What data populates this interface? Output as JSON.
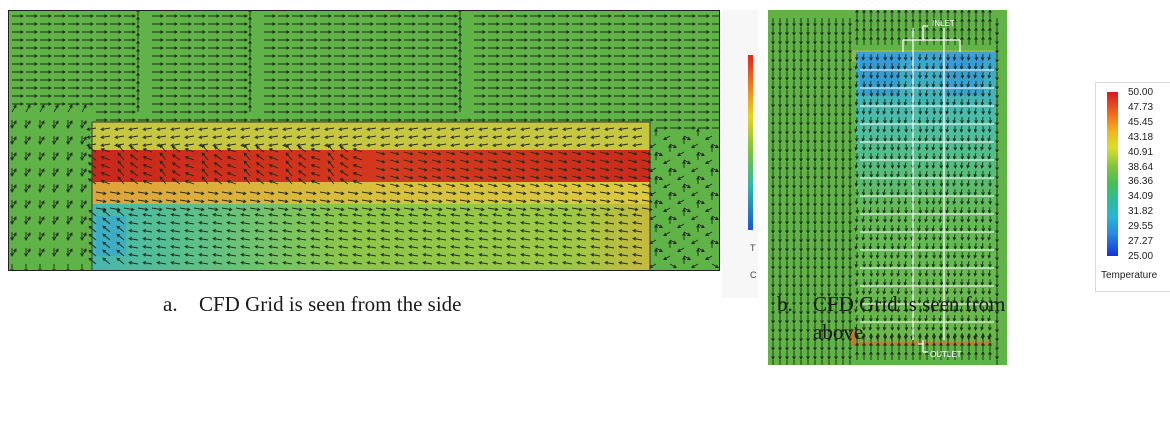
{
  "figure_a": {
    "caption_letter": "a.",
    "caption_text": "CFD Grid is seen from the side"
  },
  "figure_b": {
    "caption_letter": "b.",
    "caption_line1": "CFD Grid is seen from",
    "caption_line2": "above",
    "inlet_label": "INLET",
    "outlet_label": "OUTLET"
  },
  "cropped_side_legend": {
    "title_fragment": "T",
    "text_fragment": "C"
  },
  "legend": {
    "title": "Temperature",
    "ticks": [
      "50.00",
      "47.73",
      "45.45",
      "43.18",
      "40.91",
      "38.64",
      "36.36",
      "34.09",
      "31.82",
      "29.55",
      "27.27",
      "25.00"
    ],
    "min": 25.0,
    "max": 50.0
  },
  "colors": {
    "ambient_green": "#5fb347",
    "hot_red": "#d02a1c",
    "warm_yellow": "#d7c83a",
    "cool_cyan": "#3fb4c4",
    "cold_blue": "#2f86d4",
    "arrow": "#1e2a1a",
    "duct_line": "#ffffff"
  }
}
